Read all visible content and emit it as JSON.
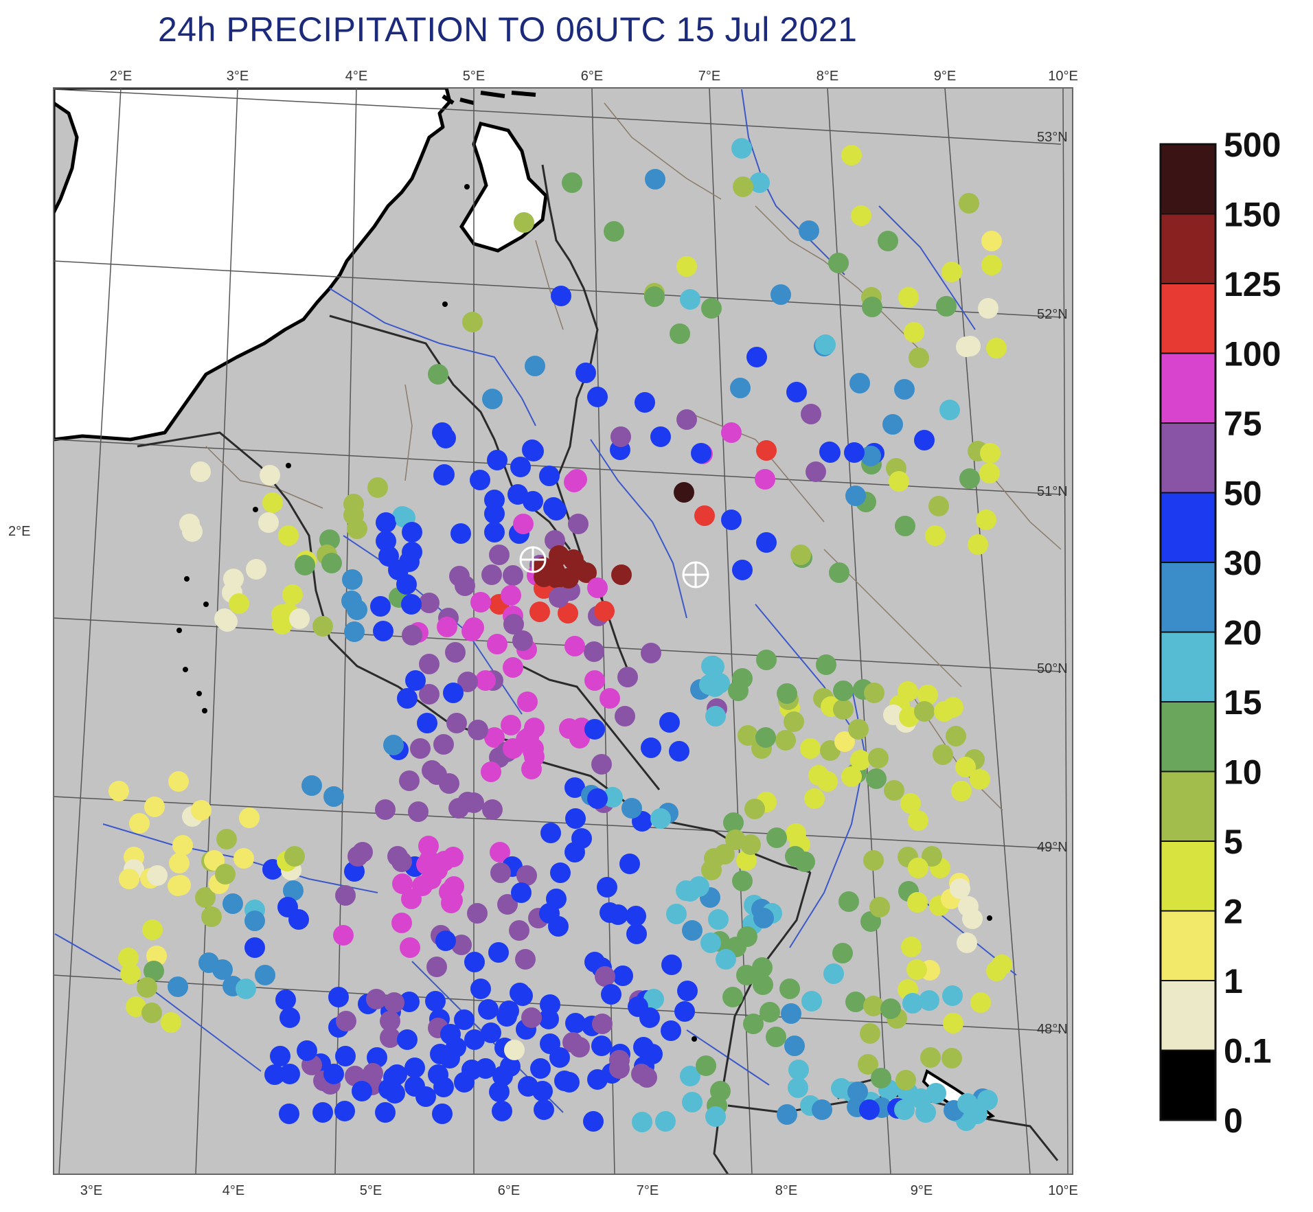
{
  "title": "24h PRECIPITATION TO 06UTC 15 Jul 2021",
  "lon_labels_top": [
    "2°E",
    "3°E",
    "4°E",
    "5°E",
    "6°E",
    "7°E",
    "8°E",
    "9°E",
    "10°E"
  ],
  "lon_labels_bottom": [
    "3°E",
    "4°E",
    "5°E",
    "6°E",
    "7°E",
    "8°E",
    "9°E",
    "10°E"
  ],
  "lat_labels": [
    "53°N",
    "52°N",
    "51°N",
    "50°N",
    "49°N",
    "48°N"
  ],
  "left_label": "2°E",
  "legend": {
    "labels": [
      "500",
      "150",
      "125",
      "100",
      "75",
      "50",
      "30",
      "20",
      "15",
      "10",
      "5",
      "2",
      "1",
      "0.1",
      "0"
    ],
    "colors": [
      "#3a1414",
      "#8a2121",
      "#e63a33",
      "#d944cf",
      "#8a54a6",
      "#1c3bf0",
      "#3a8dc9",
      "#55bcd4",
      "#6aa65c",
      "#a3bd4d",
      "#d9e340",
      "#f2e86a",
      "#ece9c8",
      "#000000"
    ]
  },
  "colors": {
    "land": "#c3c3c3",
    "sea": "#ffffff",
    "river": "#3c58c9",
    "border_country": "#2b2b2b",
    "border_region": "#8a7b6a"
  }
}
